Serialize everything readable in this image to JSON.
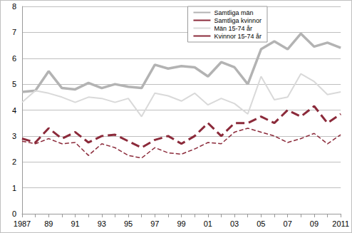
{
  "chart_data": {
    "type": "line",
    "categories": [
      "1987",
      null,
      "89",
      null,
      "91",
      null,
      "93",
      null,
      "95",
      null,
      "97",
      null,
      "99",
      null,
      "01",
      null,
      "03",
      null,
      "05",
      null,
      "07",
      null,
      "09",
      null,
      "2011"
    ],
    "series": [
      {
        "name": "Samtliga män",
        "color": "#b3b3b3",
        "line_style": "solid",
        "values": [
          4.7,
          4.75,
          5.5,
          4.85,
          4.8,
          5.05,
          4.85,
          5.0,
          4.9,
          4.85,
          5.75,
          5.6,
          5.7,
          5.65,
          5.3,
          5.85,
          5.65,
          5.0,
          6.35,
          6.65,
          6.35,
          6.95,
          6.45,
          6.6,
          6.4
        ]
      },
      {
        "name": "Samtliga kvinnor",
        "color": "#8b2a3a",
        "line_style": "dashed",
        "values": [
          2.9,
          2.75,
          3.3,
          2.9,
          3.15,
          2.75,
          3.0,
          3.05,
          2.8,
          2.55,
          2.85,
          3.0,
          2.7,
          3.0,
          3.5,
          3.0,
          3.5,
          3.5,
          3.75,
          3.5,
          4.0,
          3.75,
          4.15,
          3.5,
          3.85
        ]
      },
      {
        "name": "Män 15-74 år",
        "color": "#d9d9d9",
        "line_style": "solid",
        "values": [
          4.3,
          4.75,
          4.65,
          4.5,
          4.3,
          4.5,
          4.45,
          4.3,
          4.45,
          3.75,
          4.65,
          4.55,
          4.35,
          4.65,
          4.2,
          4.45,
          4.25,
          3.85,
          5.3,
          4.4,
          4.5,
          5.4,
          5.1,
          4.6,
          4.7
        ]
      },
      {
        "name": "Kvinnor 15-74 år",
        "color": "#8b2a3a",
        "line_style": "dashed",
        "values": [
          2.8,
          2.7,
          2.9,
          2.7,
          2.75,
          2.25,
          2.7,
          2.55,
          2.25,
          2.15,
          2.55,
          2.35,
          2.3,
          2.5,
          2.75,
          2.7,
          3.15,
          3.3,
          3.15,
          3.0,
          2.75,
          2.9,
          3.1,
          2.7,
          3.05
        ]
      }
    ],
    "ylim": [
      0,
      8
    ],
    "yticks": [
      0,
      1,
      2,
      3,
      4,
      5,
      6,
      7,
      8
    ],
    "grid": true,
    "legend": "top-right"
  }
}
